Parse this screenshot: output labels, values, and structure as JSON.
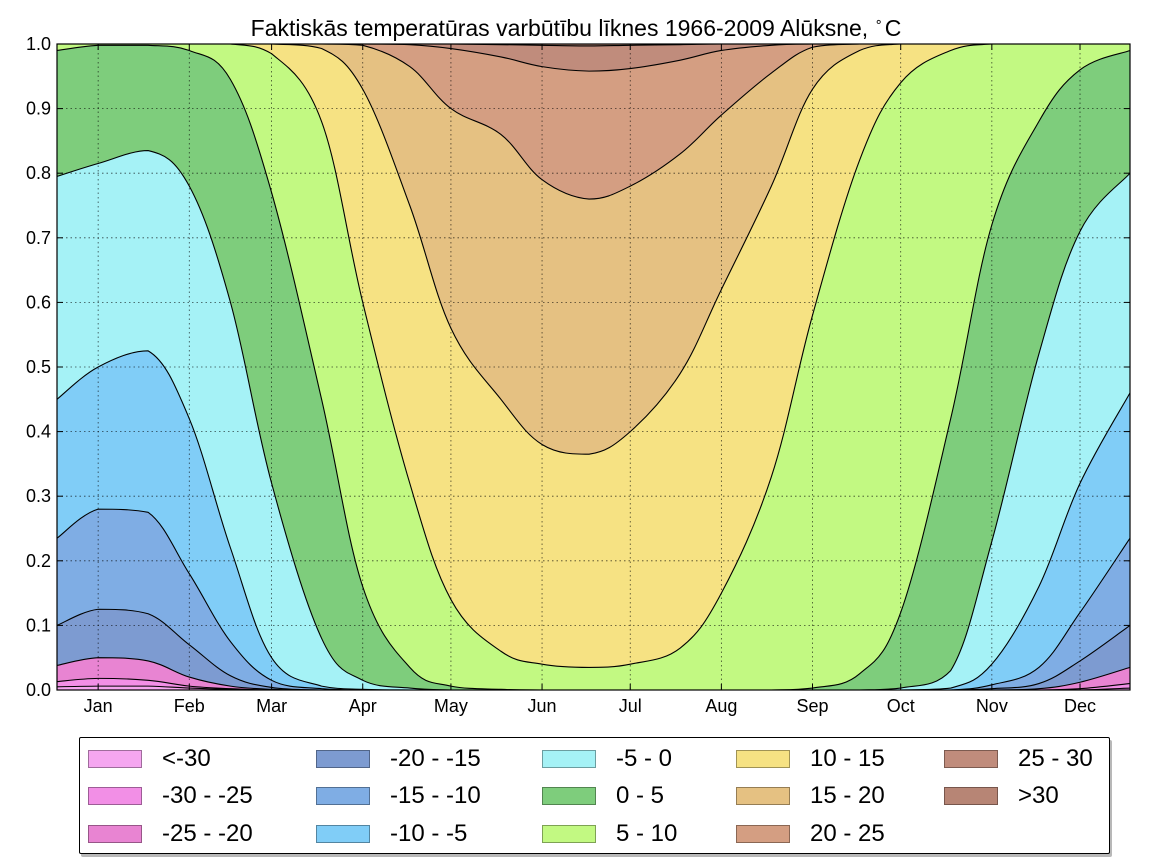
{
  "title": "Faktiskās temperatūras varbūtību līknes 1966-2009 Alūksne,",
  "title_unit_degree": "∘",
  "title_unit": "C",
  "chart_data": {
    "type": "area",
    "stacked": true,
    "title": "Faktiskās temperatūras varbūtību līknes 1966-2009 Alūksne, °C",
    "xlabel": "",
    "ylabel": "",
    "x_tick_labels": [
      "Jan",
      "Feb",
      "Mar",
      "Apr",
      "May",
      "Jun",
      "Jul",
      "Aug",
      "Sep",
      "Oct",
      "Nov",
      "Dec"
    ],
    "y_tick_labels": [
      "0.0",
      "0.1",
      "0.2",
      "0.3",
      "0.4",
      "0.5",
      "0.6",
      "0.7",
      "0.8",
      "0.9",
      "1.0"
    ],
    "ylim": [
      0,
      1
    ],
    "xlim_day_of_year": [
      1,
      366
    ],
    "grid": true,
    "legend_position": "bottom",
    "x_day_of_year": [
      1,
      15,
      32,
      46,
      60,
      74,
      91,
      105,
      121,
      135,
      152,
      166,
      182,
      196,
      213,
      227,
      244,
      258,
      274,
      288,
      305,
      319,
      335,
      349,
      366
    ],
    "cumulative_boundaries": [
      {
        "upper_class": "<-30",
        "values": [
          0.005,
          0.006,
          0.006,
          0.003,
          0.001,
          0,
          0,
          0,
          0,
          0,
          0,
          0,
          0,
          0,
          0,
          0,
          0,
          0,
          0,
          0,
          0,
          0,
          0,
          0,
          0.003
        ]
      },
      {
        "upper_class": "-30 - -25",
        "values": [
          0.013,
          0.018,
          0.015,
          0.006,
          0.002,
          0,
          0,
          0,
          0,
          0,
          0,
          0,
          0,
          0,
          0,
          0,
          0,
          0,
          0,
          0,
          0,
          0,
          0,
          0.002,
          0.01
        ]
      },
      {
        "upper_class": "-25 - -20",
        "values": [
          0.038,
          0.05,
          0.045,
          0.02,
          0.006,
          0.001,
          0,
          0,
          0,
          0,
          0,
          0,
          0,
          0,
          0,
          0,
          0,
          0,
          0,
          0,
          0,
          0,
          0.002,
          0.012,
          0.035
        ]
      },
      {
        "upper_class": "-20 - -15",
        "values": [
          0.1,
          0.125,
          0.118,
          0.07,
          0.022,
          0.004,
          0,
          0,
          0,
          0,
          0,
          0,
          0,
          0,
          0,
          0,
          0,
          0,
          0,
          0,
          0,
          0.002,
          0.01,
          0.045,
          0.1
        ]
      },
      {
        "upper_class": "-15 - -10",
        "values": [
          0.235,
          0.28,
          0.275,
          0.18,
          0.075,
          0.015,
          0.002,
          0,
          0,
          0,
          0,
          0,
          0,
          0,
          0,
          0,
          0,
          0,
          0,
          0,
          0,
          0.008,
          0.035,
          0.12,
          0.235
        ]
      },
      {
        "upper_class": "-10 - -5",
        "values": [
          0.45,
          0.5,
          0.525,
          0.42,
          0.22,
          0.05,
          0.006,
          0.001,
          0,
          0,
          0,
          0,
          0,
          0,
          0,
          0,
          0,
          0,
          0,
          0,
          0.003,
          0.04,
          0.16,
          0.32,
          0.46
        ]
      },
      {
        "upper_class": "-5 - 0",
        "values": [
          0.795,
          0.815,
          0.835,
          0.78,
          0.6,
          0.32,
          0.08,
          0.015,
          0.003,
          0,
          0,
          0,
          0,
          0,
          0,
          0,
          0,
          0,
          0,
          0.003,
          0.03,
          0.23,
          0.52,
          0.71,
          0.8
        ]
      },
      {
        "upper_class": "0 - 5",
        "values": [
          0.99,
          0.998,
          0.998,
          0.99,
          0.945,
          0.77,
          0.45,
          0.16,
          0.035,
          0.006,
          0.001,
          0,
          0,
          0,
          0,
          0,
          0,
          0.003,
          0.025,
          0.12,
          0.42,
          0.72,
          0.88,
          0.96,
          0.99
        ]
      },
      {
        "upper_class": "5 - 10",
        "values": [
          1,
          1,
          1,
          1,
          1,
          0.985,
          0.88,
          0.6,
          0.32,
          0.14,
          0.06,
          0.04,
          0.035,
          0.04,
          0.065,
          0.15,
          0.33,
          0.58,
          0.82,
          0.94,
          0.99,
          1,
          1,
          1,
          1
        ]
      },
      {
        "upper_class": "10 - 15",
        "values": [
          1,
          1,
          1,
          1,
          1,
          1,
          0.993,
          0.93,
          0.75,
          0.56,
          0.45,
          0.38,
          0.365,
          0.4,
          0.49,
          0.62,
          0.78,
          0.93,
          0.99,
          1,
          1,
          1,
          1,
          1,
          1
        ]
      },
      {
        "upper_class": "15 - 20",
        "values": [
          1,
          1,
          1,
          1,
          1,
          1,
          1,
          0.998,
          0.965,
          0.9,
          0.86,
          0.79,
          0.76,
          0.78,
          0.83,
          0.89,
          0.955,
          0.995,
          1,
          1,
          1,
          1,
          1,
          1,
          1
        ]
      },
      {
        "upper_class": "20 - 25",
        "values": [
          1,
          1,
          1,
          1,
          1,
          1,
          1,
          1,
          0.999,
          0.993,
          0.98,
          0.965,
          0.958,
          0.962,
          0.975,
          0.99,
          0.998,
          1,
          1,
          1,
          1,
          1,
          1,
          1,
          1
        ]
      },
      {
        "upper_class": "25 - 30",
        "values": [
          1,
          1,
          1,
          1,
          1,
          1,
          1,
          1,
          1,
          1,
          0.999,
          0.998,
          0.997,
          0.998,
          0.999,
          1,
          1,
          1,
          1,
          1,
          1,
          1,
          1,
          1,
          1
        ]
      },
      {
        "upper_class": ">30",
        "values": [
          1,
          1,
          1,
          1,
          1,
          1,
          1,
          1,
          1,
          1,
          1,
          1,
          1,
          1,
          1,
          1,
          1,
          1,
          1,
          1,
          1,
          1,
          1,
          1,
          1
        ]
      }
    ],
    "series": [
      {
        "name": "<-30",
        "color": "#f5a6f0"
      },
      {
        "name": "-30 - -25",
        "color": "#f28fe6"
      },
      {
        "name": "-25 - -20",
        "color": "#e884d2"
      },
      {
        "name": "-20 - -15",
        "color": "#7d9bd1"
      },
      {
        "name": "-15 - -10",
        "color": "#7fade4"
      },
      {
        "name": "-10 - -5",
        "color": "#80cdf7"
      },
      {
        "name": "-5 - 0",
        "color": "#a5f2f6"
      },
      {
        "name": "0 - 5",
        "color": "#7ecd7c"
      },
      {
        "name": "5 - 10",
        "color": "#c2f982"
      },
      {
        "name": "10 - 15",
        "color": "#f6e283"
      },
      {
        "name": "15 - 20",
        "color": "#e5c182"
      },
      {
        "name": "20 - 25",
        "color": "#d49e82"
      },
      {
        "name": "25 - 30",
        "color": "#c08c7c"
      },
      {
        "name": ">30",
        "color": "#b78575"
      }
    ]
  }
}
